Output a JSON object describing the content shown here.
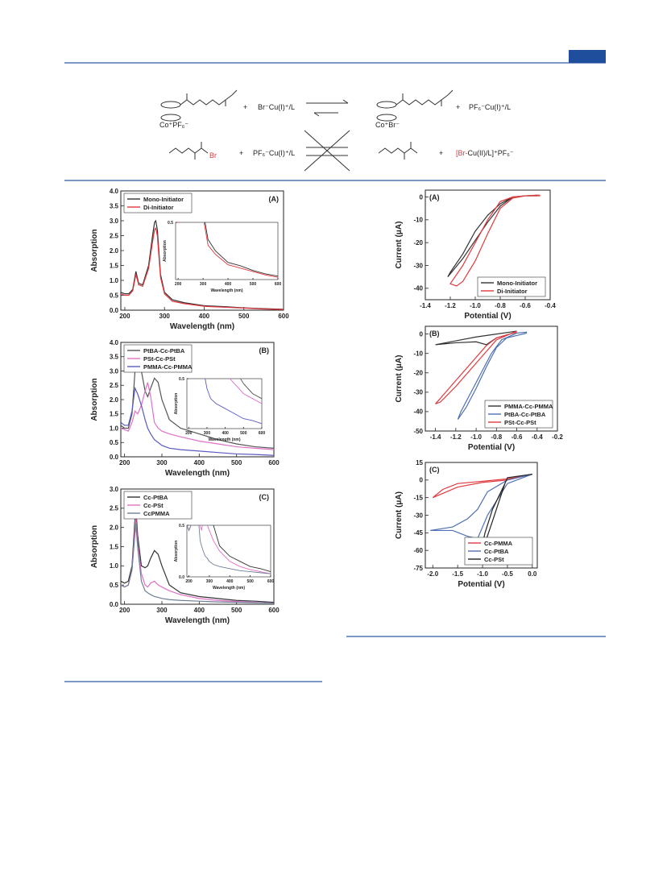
{
  "scheme": {
    "top_left_counterion": "Co⁺PF₆⁻",
    "top_reagent": "Br⁻Cu(I)⁺/L",
    "top_right_counterion": "Co⁺Br⁻",
    "top_product": "PF₆⁻Cu(I)⁺/L",
    "bottom_halogen": "Br",
    "bottom_reagent": "PF₆⁻Cu(I)⁺/L",
    "bottom_product_red": "[Br-",
    "bottom_product_rest": "Cu(II)/L]⁺PF₆⁻",
    "plus_signs": [
      "+",
      "+",
      "+",
      "+"
    ]
  },
  "chart_data": [
    {
      "type": "line",
      "panel_label": "(A)",
      "xlabel": "Wavelength (nm)",
      "ylabel": "Absorption",
      "xlim": [
        190,
        600
      ],
      "ylim": [
        0,
        4
      ],
      "xticks": [
        200,
        300,
        400,
        500,
        600
      ],
      "yticks": [
        {
          "value": 0,
          "label": "0.0"
        },
        0.5,
        {
          "value": 1,
          "label": "1.0"
        },
        1.5,
        {
          "value": 2,
          "label": "2.0"
        },
        2.5,
        {
          "value": 3,
          "label": "3.0"
        },
        3.5,
        {
          "value": 4,
          "label": "4.0"
        }
      ],
      "legend": "upper left",
      "x": [
        190,
        200,
        210,
        220,
        228,
        235,
        245,
        260,
        270,
        275,
        278,
        282,
        290,
        300,
        320,
        350,
        400,
        450,
        500,
        550,
        600
      ],
      "series": [
        {
          "name": "Mono-Initiator",
          "color": "#333333",
          "values": [
            0.6,
            0.55,
            0.55,
            0.7,
            1.3,
            0.9,
            0.85,
            1.5,
            2.5,
            2.95,
            3.0,
            2.7,
            1.2,
            0.6,
            0.35,
            0.25,
            0.15,
            0.12,
            0.08,
            0.05,
            0.03
          ]
        },
        {
          "name": "Di-Initiator",
          "color": "#e0393e",
          "values": [
            0.55,
            0.5,
            0.5,
            0.65,
            1.2,
            0.85,
            0.8,
            1.4,
            2.3,
            2.7,
            2.75,
            2.5,
            1.1,
            0.55,
            0.3,
            0.22,
            0.13,
            0.1,
            0.07,
            0.04,
            0.02
          ]
        }
      ],
      "inset": {
        "xlabel": "Wavelength (nm)",
        "ylabel": "Absorption",
        "xlim": [
          190,
          600
        ],
        "ylim": [
          0,
          0.5
        ],
        "xticks": [
          200,
          300,
          400,
          500,
          600
        ],
        "yticks": [
          0.5
        ]
      }
    },
    {
      "type": "line",
      "panel_label": "(B)",
      "xlabel": "Wavelength (nm)",
      "ylabel": "Absorption",
      "xlim": [
        190,
        600
      ],
      "ylim": [
        0,
        4
      ],
      "xticks": [
        200,
        300,
        400,
        500,
        600
      ],
      "yticks": [
        {
          "value": 0,
          "label": "0.0"
        },
        0.5,
        {
          "value": 1,
          "label": "1.0"
        },
        1.5,
        {
          "value": 2,
          "label": "2.0"
        },
        2.5,
        {
          "value": 3,
          "label": "3.0"
        },
        3.5,
        {
          "value": 4,
          "label": "4.0"
        }
      ],
      "legend": "upper left",
      "x": [
        190,
        200,
        210,
        220,
        228,
        235,
        245,
        255,
        262,
        270,
        280,
        290,
        300,
        320,
        350,
        400,
        450,
        500,
        550,
        600
      ],
      "series": [
        {
          "name": "PtBA-Cc-PtBA",
          "color": "#555555",
          "values": [
            1.1,
            1.0,
            1.0,
            1.5,
            3.0,
            3.7,
            3.0,
            2.3,
            2.1,
            2.4,
            2.75,
            2.6,
            2.0,
            1.3,
            1.0,
            0.8,
            0.6,
            0.45,
            0.35,
            0.3
          ]
        },
        {
          "name": "PSt-Cc-PSt",
          "color": "#e070c8",
          "values": [
            1.0,
            0.95,
            0.9,
            1.2,
            1.6,
            1.5,
            1.8,
            2.3,
            2.6,
            2.1,
            1.2,
            1.0,
            0.9,
            0.8,
            0.7,
            0.55,
            0.45,
            0.35,
            0.3,
            0.25
          ]
        },
        {
          "name": "PMMA-Cc-PMMA",
          "color": "#5a5abf",
          "values": [
            1.2,
            1.1,
            1.1,
            1.6,
            2.4,
            2.2,
            1.8,
            1.3,
            1.0,
            0.8,
            0.6,
            0.5,
            0.4,
            0.3,
            0.25,
            0.2,
            0.15,
            0.1,
            0.08,
            0.05
          ]
        }
      ],
      "inset": {
        "xlabel": "Wavelength (nm)",
        "ylabel": "Absorption",
        "xlim": [
          190,
          600
        ],
        "ylim": [
          0,
          0.5
        ],
        "xticks": [
          200,
          300,
          400,
          500,
          600
        ],
        "yticks": [
          0.5
        ]
      }
    },
    {
      "type": "line",
      "panel_label": "(C)",
      "xlabel": "Wavelength (nm)",
      "ylabel": "Absorption",
      "xlim": [
        190,
        600
      ],
      "ylim": [
        0,
        3
      ],
      "xticks": [
        200,
        300,
        400,
        500,
        600
      ],
      "yticks": [
        {
          "value": 0,
          "label": "0.0"
        },
        0.5,
        {
          "value": 1,
          "label": "1.0"
        },
        1.5,
        {
          "value": 2,
          "label": "2.0"
        },
        2.5,
        {
          "value": 3,
          "label": "3.0"
        }
      ],
      "legend": "upper left",
      "x": [
        190,
        200,
        210,
        220,
        230,
        235,
        245,
        255,
        262,
        270,
        280,
        290,
        300,
        320,
        350,
        400,
        450,
        500,
        550,
        600
      ],
      "series": [
        {
          "name": "Cc-PtBA",
          "color": "#333333",
          "values": [
            0.6,
            0.55,
            0.6,
            1.0,
            2.55,
            1.8,
            1.0,
            0.95,
            1.0,
            1.2,
            1.4,
            1.3,
            1.0,
            0.5,
            0.3,
            0.2,
            0.15,
            0.1,
            0.08,
            0.05
          ]
        },
        {
          "name": "Cc-PSt",
          "color": "#e070c8",
          "values": [
            0.5,
            0.45,
            0.5,
            0.9,
            2.3,
            1.6,
            0.8,
            0.5,
            0.45,
            0.55,
            0.6,
            0.5,
            0.45,
            0.35,
            0.25,
            0.15,
            0.1,
            0.07,
            0.05,
            0.03
          ]
        },
        {
          "name": "CcPMMA",
          "color": "#6f7f95",
          "values": [
            0.5,
            0.45,
            0.5,
            0.9,
            2.1,
            1.5,
            0.6,
            0.35,
            0.3,
            0.25,
            0.2,
            0.18,
            0.15,
            0.12,
            0.1,
            0.08,
            0.06,
            0.05,
            0.04,
            0.03
          ]
        }
      ],
      "inset": {
        "xlabel": "Wavelength (nm)",
        "ylabel": "Absorption",
        "xlim": [
          190,
          600
        ],
        "ylim": [
          0,
          0.5
        ],
        "xticks": [
          200,
          300,
          400,
          500,
          600
        ],
        "yticks": [
          {
            "value": 0,
            "label": "0.0"
          },
          0.5
        ]
      }
    },
    {
      "type": "line",
      "panel_label": "(A)",
      "xlabel": "Potential (V)",
      "ylabel": "Current (μA)",
      "xlim": [
        -1.4,
        -0.4
      ],
      "ylim": [
        -45,
        3
      ],
      "xticks": [
        -1.4,
        -1.2,
        {
          "value": -1,
          "label": "-1.0"
        },
        -0.8,
        -0.6,
        -0.4
      ],
      "yticks": [
        0,
        -10,
        -20,
        -30,
        -40
      ],
      "legend": "lower right",
      "series": [
        {
          "name": "Mono-Initiator",
          "color": "#333333",
          "x": [
            -0.5,
            -0.6,
            -0.7,
            -0.8,
            -0.9,
            -1.0,
            -1.1,
            -1.2,
            -1.22,
            -1.1,
            -1.0,
            -0.9,
            -0.8,
            -0.7,
            -0.6,
            -0.5
          ],
          "values": [
            0.5,
            0.5,
            0,
            -3,
            -8,
            -15,
            -25,
            -33,
            -35,
            -27,
            -19,
            -11,
            -4,
            0,
            0.5,
            0.8
          ]
        },
        {
          "name": "Di-Initiator",
          "color": "#e0393e",
          "x": [
            -0.48,
            -0.6,
            -0.7,
            -0.8,
            -0.9,
            -1.0,
            -1.1,
            -1.2,
            -1.15,
            -1.1,
            -1.0,
            -0.9,
            -0.8,
            -0.7,
            -0.6,
            -0.48
          ],
          "values": [
            0.5,
            0.5,
            0,
            -2,
            -10,
            -20,
            -30,
            -38,
            -39,
            -37,
            -28,
            -16,
            -5,
            -0.5,
            0.5,
            0.8
          ]
        }
      ]
    },
    {
      "type": "line",
      "panel_label": "(B)",
      "xlabel": "Potential (V)",
      "ylabel": "Current (μA)",
      "xlim": [
        -1.5,
        -0.2
      ],
      "ylim": [
        -50,
        4
      ],
      "xticks": [
        -1.4,
        -1.2,
        {
          "value": -1,
          "label": "-1.0"
        },
        -0.8,
        -0.6,
        -0.4,
        -0.2
      ],
      "yticks": [
        0,
        -10,
        -20,
        -30,
        -40,
        -50
      ],
      "legend": "lower right",
      "series": [
        {
          "name": "PMMA-Cc-PMMA",
          "color": "#333333",
          "x": [
            -0.6,
            -0.8,
            -1.0,
            -1.2,
            -1.4,
            -1.2,
            -1.0,
            -0.9,
            -0.8,
            -0.6
          ],
          "values": [
            1.5,
            0,
            -1.5,
            -3.5,
            -5.5,
            -4.5,
            -4,
            -5.5,
            -2,
            1
          ]
        },
        {
          "name": "PtBA-Cc-PtBA",
          "color": "#4f6fb0",
          "x": [
            -0.5,
            -0.7,
            -0.8,
            -0.9,
            -1.0,
            -1.1,
            -1.18,
            -1.15,
            -1.05,
            -0.95,
            -0.85,
            -0.75,
            -0.6,
            -0.5
          ],
          "values": [
            0.5,
            -2,
            -7,
            -17,
            -28,
            -38,
            -44,
            -40,
            -30,
            -20,
            -10,
            -3,
            0.5,
            1
          ]
        },
        {
          "name": "PSt-Cc-PSt",
          "color": "#e0393e",
          "x": [
            -0.6,
            -0.8,
            -0.9,
            -1.0,
            -1.1,
            -1.2,
            -1.3,
            -1.4,
            -1.35,
            -1.2,
            -1.0,
            -0.8,
            -0.6
          ],
          "values": [
            1,
            -2,
            -6,
            -12,
            -18,
            -24,
            -30,
            -36,
            -35,
            -27,
            -15,
            -3,
            1.5
          ]
        }
      ]
    },
    {
      "type": "line",
      "panel_label": "(C)",
      "xlabel": "Potential (V)",
      "ylabel": "Current (μA)",
      "xlim": [
        -2.15,
        0.1
      ],
      "ylim": [
        -75,
        15
      ],
      "xticks": [
        {
          "value": -2,
          "label": "-2.0"
        },
        -1.5,
        {
          "value": -1,
          "label": "-1.0"
        },
        -0.5,
        {
          "value": 0,
          "label": "0.0"
        }
      ],
      "yticks": [
        15,
        0,
        -15,
        -30,
        -45,
        -60,
        -75
      ],
      "legend": "lower right",
      "series": [
        {
          "name": "Cc-PMMA",
          "color": "#e0393e",
          "x": [
            0,
            -0.5,
            -1.0,
            -1.5,
            -2.0,
            -1.8,
            -1.5,
            -1.0,
            -0.5,
            0
          ],
          "values": [
            5,
            0,
            -2,
            -6,
            -15,
            -8,
            -3,
            -1,
            1,
            5
          ]
        },
        {
          "name": "Cc-PtBA",
          "color": "#4f6fb0",
          "x": [
            0,
            -0.5,
            -0.9,
            -1.1,
            -1.3,
            -1.6,
            -2.05,
            -1.6,
            -1.3,
            -1.1,
            -0.9,
            -0.5,
            0
          ],
          "values": [
            5,
            0,
            -10,
            -25,
            -33,
            -40,
            -43,
            -43,
            -48,
            -50,
            -30,
            -3,
            5
          ]
        },
        {
          "name": "Cc-PSt",
          "color": "#222222",
          "x": [
            0,
            -0.5,
            -0.55,
            -0.8,
            -1.0,
            -1.1,
            -1.05,
            -0.95,
            -0.8,
            -0.55,
            -0.5,
            0
          ],
          "values": [
            5,
            2,
            -3,
            -35,
            -60,
            -68,
            -64,
            -45,
            -25,
            -3,
            2,
            5
          ]
        }
      ]
    }
  ]
}
